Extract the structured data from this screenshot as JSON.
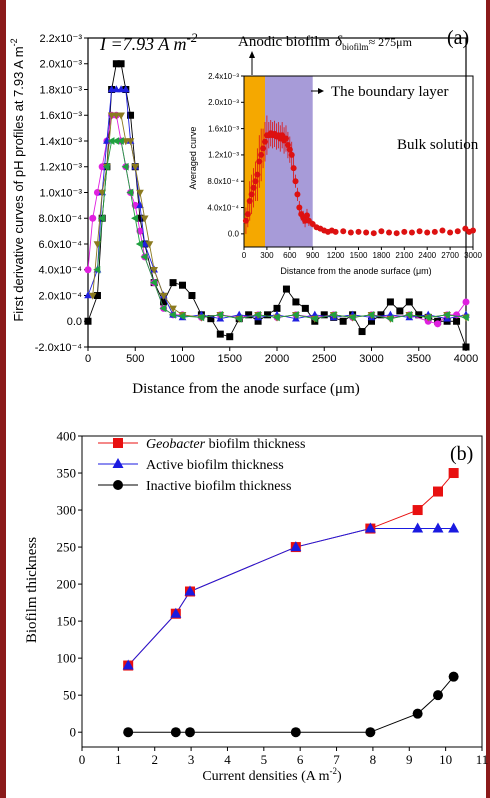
{
  "chart_data": [
    {
      "id": "a",
      "type": "line",
      "panel_label": "(a)",
      "annotation_current": "I =7.93 A m",
      "annotation_current_exp": "-2",
      "xlabel": "Distance from the anode surface (μm)",
      "ylabel": "First derivative curves of pH profiles at 7.93 A m",
      "ylabel_exp": "-2",
      "xlim": [
        0,
        4000
      ],
      "ylim": [
        -0.0002,
        0.0022
      ],
      "xticks": [
        0,
        500,
        1000,
        1500,
        2000,
        2500,
        3000,
        3500,
        4000
      ],
      "xtick_labels": [
        "0",
        "500",
        "1000",
        "1500",
        "2000",
        "2500",
        "3000",
        "3500",
        "4000"
      ],
      "yticks": [
        -0.0002,
        0,
        0.0002,
        0.0004,
        0.0006,
        0.0008,
        0.001,
        0.0012,
        0.0014,
        0.0016,
        0.0018,
        0.002,
        0.0022
      ],
      "ytick_labels": [
        "-2.0x10⁻⁴",
        "0.0",
        "2.0x10⁻⁴",
        "4.0x10⁻⁴",
        "6.0x10⁻⁴",
        "8.0x10⁻⁴",
        "1.0x10⁻³",
        "1.2x10⁻³",
        "1.4x10⁻³",
        "1.6x10⁻³",
        "1.8x10⁻³",
        "2.0x10⁻³",
        "2.2x10⁻³"
      ],
      "series": [
        {
          "marker": "square",
          "color": "#000000",
          "x": [
            0,
            100,
            150,
            200,
            250,
            300,
            350,
            400,
            450,
            500,
            550,
            600,
            700,
            800,
            900,
            1000,
            1100,
            1200,
            1300,
            1400,
            1500,
            1600,
            1700,
            1800,
            1900,
            2000,
            2100,
            2200,
            2300,
            2400,
            2500,
            2600,
            2700,
            2800,
            2900,
            3000,
            3100,
            3200,
            3300,
            3400,
            3500,
            3600,
            3700,
            3800,
            3900,
            4000
          ],
          "y": [
            0,
            0.0002,
            0.0008,
            0.0012,
            0.0018,
            0.002,
            0.002,
            0.0018,
            0.0016,
            0.0012,
            0.0008,
            0.0006,
            0.0003,
            0.00015,
            0.0003,
            0.00028,
            0.0002,
            5e-05,
            2e-05,
            -0.0001,
            -0.00012,
            2e-05,
            5e-05,
            0,
            5e-05,
            0.0001,
            0.00025,
            0.00015,
            0.0001,
            0,
            5e-05,
            3e-05,
            0,
            5e-05,
            -8e-05,
            0,
            5e-05,
            0.00015,
            8e-05,
            0.00015,
            5e-05,
            3e-05,
            0,
            0,
            0,
            -0.0002
          ]
        },
        {
          "marker": "circle",
          "color": "#e020e0",
          "x": [
            0,
            50,
            100,
            150,
            200,
            250,
            300,
            350,
            400,
            450,
            500,
            550,
            600,
            700,
            800,
            900,
            1000,
            1200,
            1400,
            1600,
            1800,
            2000,
            2200,
            2400,
            2600,
            2800,
            3000,
            3200,
            3400,
            3600,
            3700,
            3800,
            3900,
            4000
          ],
          "y": [
            0.0004,
            0.0008,
            0.001,
            0.0012,
            0.0014,
            0.0016,
            0.0016,
            0.0014,
            0.0012,
            0.001,
            0.0009,
            0.0007,
            0.0005,
            0.0003,
            0.0001,
            5e-05,
            5e-05,
            3e-05,
            5e-05,
            3e-05,
            5e-05,
            3e-05,
            5e-05,
            3e-05,
            5e-05,
            3e-05,
            5e-05,
            3e-05,
            5e-05,
            0,
            -2e-05,
            5e-05,
            5e-05,
            0.00015
          ]
        },
        {
          "marker": "triangle",
          "color": "#2020e0",
          "x": [
            0,
            100,
            150,
            200,
            250,
            300,
            350,
            400,
            450,
            500,
            550,
            600,
            700,
            800,
            900,
            1000,
            1200,
            1400,
            1600,
            1800,
            2000,
            2200,
            2400,
            2600,
            2800,
            3000,
            3200,
            3400,
            3600,
            3800,
            4000
          ],
          "y": [
            0.0002,
            0.0004,
            0.001,
            0.0014,
            0.0018,
            0.0018,
            0.0018,
            0.0018,
            0.0014,
            0.0012,
            0.0009,
            0.0006,
            0.0004,
            0.0002,
            5e-05,
            3e-05,
            5e-05,
            2e-05,
            5e-05,
            3e-05,
            5e-05,
            2e-05,
            5e-05,
            3e-05,
            5e-05,
            3e-05,
            5e-05,
            3e-05,
            5e-05,
            2e-05,
            5e-05
          ]
        },
        {
          "marker": "triangle-down",
          "color": "#8b7a20",
          "x": [
            50,
            100,
            150,
            200,
            250,
            300,
            350,
            400,
            450,
            500,
            550,
            600,
            650,
            700,
            800,
            900,
            1000,
            1200,
            1400,
            1600,
            1800,
            2000,
            2200,
            2400,
            2600,
            2800,
            3000,
            3200,
            3400,
            3600,
            3800,
            4000
          ],
          "y": [
            0.0002,
            0.0006,
            0.001,
            0.0012,
            0.0016,
            0.0016,
            0.0016,
            0.0014,
            0.0014,
            0.0012,
            0.001,
            0.0008,
            0.0006,
            0.0004,
            0.0002,
            0.0001,
            5e-05,
            3e-05,
            5e-05,
            2e-05,
            5e-05,
            3e-05,
            5e-05,
            2e-05,
            5e-05,
            3e-05,
            5e-05,
            2e-05,
            5e-05,
            3e-05,
            5e-05,
            3e-05
          ]
        },
        {
          "marker": "triangle-left",
          "color": "#20a040",
          "x": [
            100,
            150,
            200,
            250,
            300,
            350,
            400,
            450,
            500,
            550,
            600,
            700,
            800,
            900,
            1000,
            1200,
            1400,
            1600,
            1800,
            2000,
            2200,
            2400,
            2600,
            2800,
            3000,
            3200,
            3400,
            3600,
            3800,
            4000
          ],
          "y": [
            0.0004,
            0.0008,
            0.0012,
            0.0014,
            0.0014,
            0.0014,
            0.0012,
            0.001,
            0.0008,
            0.0006,
            0.0005,
            0.0003,
            0.0001,
            5e-05,
            4e-05,
            3e-05,
            5e-05,
            2e-05,
            5e-05,
            3e-05,
            5e-05,
            2e-05,
            5e-05,
            3e-05,
            5e-05,
            2e-05,
            5e-05,
            3e-05,
            5e-05,
            3e-05
          ]
        }
      ]
    },
    {
      "id": "a-inset",
      "type": "scatter",
      "ylabel": "Averaged curve",
      "xlabel": "Distance from the anode surface (μm)",
      "xlim": [
        0,
        3000
      ],
      "ylim": [
        -0.0002,
        0.0024
      ],
      "xticks": [
        0,
        300,
        600,
        900,
        1200,
        1500,
        1800,
        2100,
        2400,
        2700,
        3000
      ],
      "xtick_labels": [
        "0",
        "300",
        "600",
        "900",
        "1200",
        "1500",
        "1800",
        "2100",
        "2400",
        "2700",
        "3000"
      ],
      "yticks": [
        0,
        0.0004,
        0.0008,
        0.0012,
        0.0016,
        0.002,
        0.0024
      ],
      "ytick_labels": [
        "0.0",
        "4.0x10⁻⁴",
        "8.0x10⁻⁴",
        "1.2x10⁻³",
        "1.6x10⁻³",
        "2.0x10⁻³",
        "2.4x10⁻³"
      ],
      "regions": [
        {
          "label": "Anodic biofilm",
          "x0": 0,
          "x1": 275,
          "color": "#f5a800"
        },
        {
          "label": "The boundary layer",
          "x0": 275,
          "x1": 900,
          "color": "#a79bd8"
        }
      ],
      "label_biofilm": "Anodic biofilm",
      "label_delta_sub": "biofilm",
      "label_delta_val": "≈ 275μm",
      "label_boundary": "The boundary layer",
      "label_bulk": "Bulk solution",
      "series": [
        {
          "name": "Averaged",
          "color": "#dd1111",
          "x": [
            25,
            50,
            75,
            100,
            125,
            150,
            175,
            200,
            225,
            250,
            275,
            300,
            325,
            350,
            375,
            400,
            425,
            450,
            475,
            500,
            525,
            550,
            575,
            600,
            625,
            650,
            675,
            700,
            725,
            750,
            775,
            800,
            825,
            850,
            900,
            950,
            1000,
            1050,
            1100,
            1150,
            1200,
            1300,
            1400,
            1500,
            1600,
            1700,
            1800,
            1900,
            2000,
            2100,
            2200,
            2300,
            2400,
            2500,
            2600,
            2700,
            2800,
            2900,
            2950,
            3000
          ],
          "y": [
            0.0002,
            0.0003,
            0.0005,
            0.0006,
            0.0007,
            0.0008,
            0.0009,
            0.0011,
            0.0012,
            0.0013,
            0.0014,
            0.0015,
            0.0015,
            0.00153,
            0.0015,
            0.00152,
            0.00148,
            0.0015,
            0.00145,
            0.0015,
            0.00142,
            0.00145,
            0.00135,
            0.00128,
            0.0012,
            0.001,
            0.0008,
            0.0006,
            0.0004,
            0.0003,
            0.00025,
            0.0002,
            0.00028,
            0.0002,
            0.00015,
            0.0001,
            8e-05,
            5e-05,
            3e-05,
            5e-05,
            3e-05,
            4e-05,
            2e-05,
            3e-05,
            2e-05,
            1e-05,
            4e-05,
            2e-05,
            1e-05,
            3e-05,
            2e-05,
            4e-05,
            2e-05,
            3e-05,
            5e-05,
            2e-05,
            4e-05,
            8e-05,
            3e-05,
            5e-05
          ],
          "err": [
            0.0002,
            0.0002,
            0.0003,
            0.0003,
            0.0003,
            0.0003,
            0.0004,
            0.0004,
            0.0004,
            0.0003,
            0.0003,
            0.0003,
            0.0002,
            0.0002,
            0.0002,
            0.0002,
            0.0002,
            0.0002,
            0.0002,
            0.0002,
            0.0002,
            0.0002,
            0.0002,
            0.0002,
            0.0002,
            0.0002,
            0.0001,
            0.0001,
            0.0001,
            0.0001,
            0.0001,
            0.0001,
            0.0001,
            8e-05,
            5e-05,
            4e-05,
            3e-05,
            3e-05,
            3e-05,
            2e-05,
            3e-05,
            2e-05,
            2e-05,
            2e-05,
            2e-05,
            2e-05,
            2e-05,
            2e-05,
            2e-05,
            2e-05,
            2e-05,
            2e-05,
            2e-05,
            2e-05,
            2e-05,
            2e-05,
            2e-05,
            2e-05,
            2e-05,
            2e-05
          ]
        }
      ]
    },
    {
      "id": "b",
      "type": "line",
      "panel_label": "(b)",
      "xlabel": "Current densities (A m",
      "xlabel_exp": "-2",
      "xlabel_end": ")",
      "ylabel": "Biofilm thickness",
      "xlim": [
        0,
        11
      ],
      "ylim": [
        -20,
        400
      ],
      "xticks": [
        0,
        1,
        2,
        3,
        4,
        5,
        6,
        7,
        8,
        9,
        10,
        11
      ],
      "xtick_labels": [
        "0",
        "1",
        "2",
        "3",
        "4",
        "5",
        "6",
        "7",
        "8",
        "9",
        "10",
        "11"
      ],
      "yticks": [
        0,
        50,
        100,
        150,
        200,
        250,
        300,
        350,
        400
      ],
      "ytick_labels": [
        "0",
        "50",
        "100",
        "150",
        "200",
        "250",
        "300",
        "350",
        "400"
      ],
      "legend_position": "top-left",
      "series": [
        {
          "name_italic": "Geobacter",
          "name": " biofilm thickness",
          "marker": "square",
          "color": "#e81010",
          "line": "#e81010",
          "x": [
            1.27,
            2.58,
            2.97,
            5.88,
            7.93,
            9.23,
            9.79,
            10.22
          ],
          "y": [
            90,
            160,
            190,
            250,
            275,
            300,
            325,
            350
          ]
        },
        {
          "name": "Active biofilm thickness",
          "marker": "triangle",
          "color": "#1a1ae0",
          "line": "#1a1ae0",
          "x": [
            1.27,
            2.58,
            2.97,
            5.88,
            7.93,
            9.23,
            9.79,
            10.22
          ],
          "y": [
            90,
            160,
            190,
            250,
            275,
            275,
            275,
            275
          ]
        },
        {
          "name": "Inactive biofilm thickness",
          "marker": "circle",
          "color": "#000000",
          "line": "#000000",
          "x": [
            1.27,
            2.58,
            2.97,
            5.88,
            7.93,
            9.23,
            9.79,
            10.22
          ],
          "y": [
            0,
            0,
            0,
            0,
            0,
            25,
            50,
            75
          ]
        }
      ]
    }
  ]
}
